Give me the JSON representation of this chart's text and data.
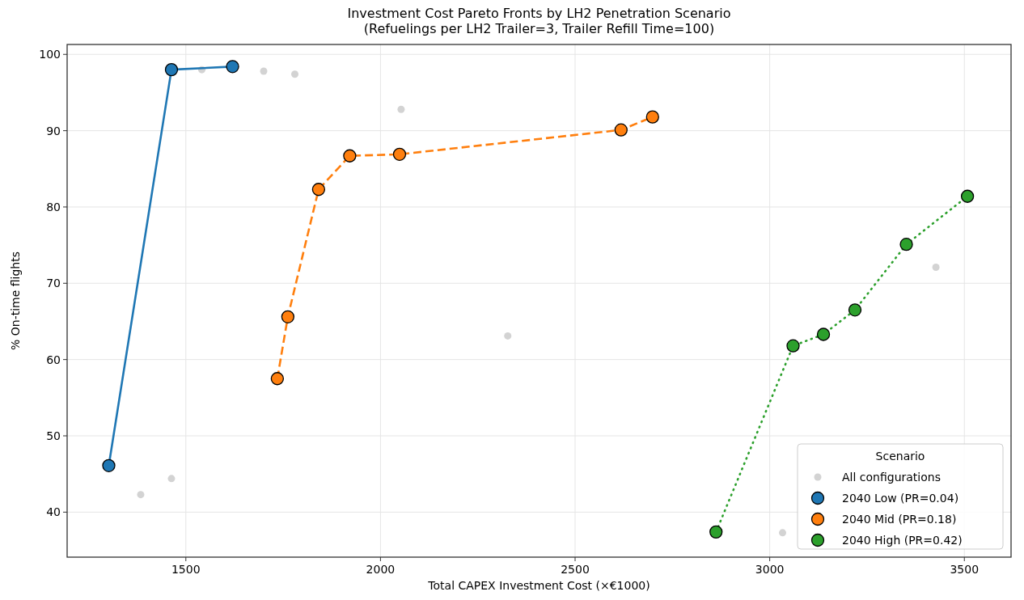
{
  "chart_data": {
    "type": "line",
    "title": "Investment Cost Pareto Fronts by LH2 Penetration Scenario\n(Refuelings per LH2 Trailer=3, Trailer Refill Time=100)",
    "xlabel": "Total CAPEX Investment Cost (×€1000)",
    "ylabel": "% On-time flights",
    "legend_title": "Scenario",
    "legend": "bottom right",
    "grid": true,
    "xlim": [
      1195,
      3620
    ],
    "ylim": [
      34.1,
      101.3
    ],
    "xticks": [
      1500,
      2000,
      2500,
      3000,
      3500
    ],
    "yticks": [
      40,
      50,
      60,
      70,
      80,
      90,
      100
    ],
    "marker": "circle",
    "series": [
      {
        "name": "All configurations",
        "type": "scatter",
        "color": "#d3d3d3",
        "x": [
          1384,
          1463,
          1541,
          1700,
          1780,
          2053,
          2327,
          3033,
          3427
        ],
        "values": [
          42.3,
          44.4,
          98.0,
          97.8,
          97.4,
          92.8,
          63.1,
          37.3,
          72.1
        ]
      },
      {
        "name": "2040 Low (PR=0.04)",
        "line_style": "solid",
        "color": "#1f77b4",
        "x": [
          1302,
          1463,
          1620
        ],
        "values": [
          46.1,
          98.0,
          98.4
        ]
      },
      {
        "name": "2040 Mid (PR=0.18)",
        "line_style": "dashed",
        "color": "#ff7f0e",
        "x": [
          1735,
          1762,
          1841,
          1921,
          2049,
          2618,
          2699
        ],
        "values": [
          57.5,
          65.6,
          82.3,
          86.7,
          86.9,
          90.1,
          91.8
        ]
      },
      {
        "name": "2040 High (PR=0.42)",
        "line_style": "dotted",
        "color": "#2ca02c",
        "x": [
          2862,
          3060,
          3138,
          3219,
          3351,
          3508
        ],
        "values": [
          37.4,
          61.8,
          63.3,
          66.5,
          75.1,
          81.4
        ]
      }
    ]
  }
}
